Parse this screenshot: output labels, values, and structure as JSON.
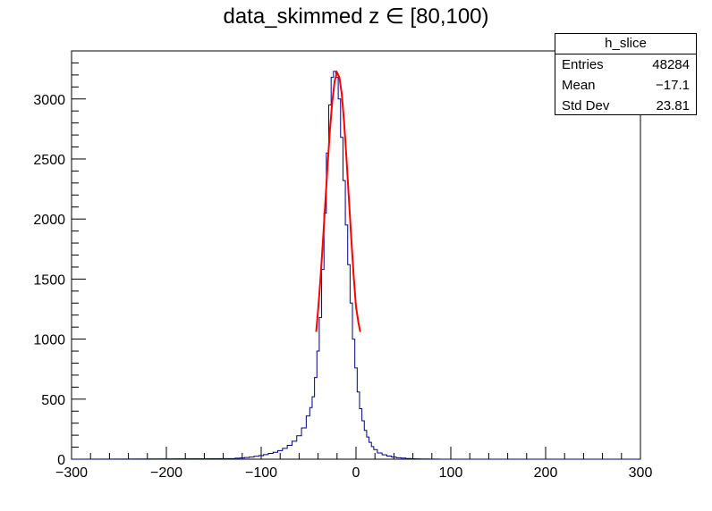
{
  "chart_data": {
    "type": "bar",
    "title": "data_skimmed z  ∈ [80,100)",
    "xlabel": "",
    "ylabel": "",
    "xlim": [
      -300,
      300
    ],
    "ylim": [
      0,
      3400
    ],
    "x_ticks": [
      -300,
      -200,
      -100,
      0,
      100,
      200,
      300
    ],
    "y_ticks": [
      0,
      500,
      1000,
      1500,
      2000,
      2500,
      3000
    ],
    "grid": false,
    "legend": "top-right",
    "series": [
      {
        "values_description": "histogram bin centers (x) and counts (y)",
        "x": [
          -130,
          -125,
          -120,
          -115,
          -110,
          -105,
          -100,
          -95,
          -90,
          -85,
          -80,
          -75,
          -70,
          -65,
          -60,
          -55,
          -50,
          -47.5,
          -45,
          -42.5,
          -40,
          -37.5,
          -35,
          -32.5,
          -30,
          -27.5,
          -25,
          -22.5,
          -20,
          -17.5,
          -15,
          -12.5,
          -10,
          -7.5,
          -5,
          -2.5,
          0,
          2.5,
          5,
          7.5,
          10,
          12.5,
          15,
          17.5,
          20,
          25,
          30,
          35,
          40,
          45,
          50,
          55,
          60,
          65,
          70,
          75,
          80,
          85,
          90
        ],
        "values": [
          5,
          8,
          10,
          14,
          18,
          24,
          30,
          38,
          48,
          58,
          72,
          90,
          115,
          150,
          195,
          260,
          360,
          430,
          520,
          680,
          900,
          1180,
          1580,
          2050,
          2550,
          2950,
          3180,
          3230,
          3180,
          3000,
          2680,
          2320,
          1950,
          1620,
          1300,
          1000,
          760,
          560,
          420,
          320,
          240,
          185,
          140,
          105,
          80,
          52,
          36,
          26,
          18,
          12,
          9,
          6,
          4,
          3,
          2,
          2,
          1,
          1,
          0
        ],
        "color": "#000080"
      },
      {
        "values_description": "Gaussian fit",
        "x": [
          -42,
          -40,
          -37.5,
          -35,
          -32.5,
          -30,
          -27.5,
          -25,
          -22.5,
          -20,
          -17.5,
          -15,
          -12.5,
          -10,
          -7.5,
          -5,
          -2.5,
          0,
          2.5,
          4.5
        ],
        "values": [
          1060,
          1240,
          1500,
          1800,
          2120,
          2440,
          2740,
          2980,
          3150,
          3220,
          3180,
          3040,
          2800,
          2500,
          2170,
          1840,
          1530,
          1270,
          1140,
          1060
        ],
        "color": "#ff0000"
      }
    ]
  },
  "stats_box": {
    "name": "h_slice",
    "entries_label": "Entries",
    "entries_value": "48284",
    "mean_label": "Mean",
    "mean_value": "−17.1",
    "stddev_label": "Std Dev",
    "stddev_value": "23.81"
  },
  "colors": {
    "histogram": "#000080",
    "fit": "#ff0000",
    "frame": "#000000"
  }
}
